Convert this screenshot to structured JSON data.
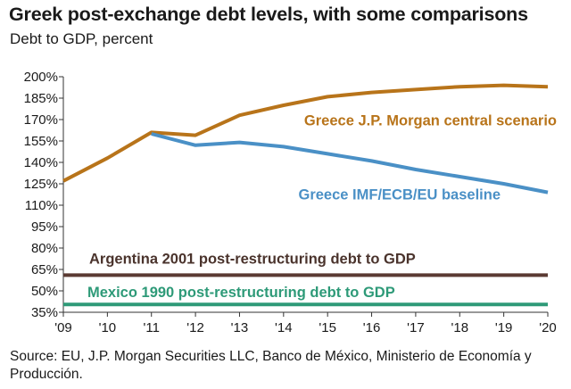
{
  "title": "Greek post-exchange debt levels, with some comparisons",
  "subtitle": "Debt to GDP, percent",
  "source": "Source: EU, J.P. Morgan Securities LLC, Banco de México, Ministerio de Economía y Producción.",
  "chart_data": {
    "type": "line",
    "title": "Greek post-exchange debt levels, with some comparisons",
    "ylabel": "Debt to GDP, percent",
    "xlabel": "",
    "x": [
      2009,
      2010,
      2011,
      2012,
      2013,
      2014,
      2015,
      2016,
      2017,
      2018,
      2019,
      2020
    ],
    "x_tick_labels": [
      "'09",
      "'10",
      "'11",
      "'12",
      "'13",
      "'14",
      "'15",
      "'16",
      "'17",
      "'18",
      "'19",
      "'20"
    ],
    "ylim": [
      35,
      200
    ],
    "y_ticks": [
      35,
      50,
      65,
      80,
      95,
      110,
      125,
      140,
      155,
      170,
      185,
      200
    ],
    "y_tick_labels": [
      "35%",
      "50%",
      "65%",
      "80%",
      "95%",
      "110%",
      "125%",
      "140%",
      "155%",
      "170%",
      "185%",
      "200%"
    ],
    "grid": false,
    "series": [
      {
        "name": "Greece J.P. Morgan central scenario",
        "color": "#b8741a",
        "points": [
          [
            2009,
            127
          ],
          [
            2010,
            143
          ],
          [
            2011,
            161
          ],
          [
            2012,
            159
          ],
          [
            2013,
            173
          ],
          [
            2014,
            180
          ],
          [
            2015,
            186
          ],
          [
            2016,
            189
          ],
          [
            2017,
            191
          ],
          [
            2018,
            193
          ],
          [
            2019,
            194
          ],
          [
            2020,
            193
          ]
        ]
      },
      {
        "name": "Greece IMF/ECB/EU baseline",
        "color": "#4a90c6",
        "points": [
          [
            2011,
            160
          ],
          [
            2012,
            152
          ],
          [
            2013,
            154
          ],
          [
            2014,
            151
          ],
          [
            2015,
            146
          ],
          [
            2016,
            141
          ],
          [
            2017,
            135
          ],
          [
            2018,
            130
          ],
          [
            2019,
            125
          ],
          [
            2020,
            119
          ]
        ]
      },
      {
        "name": "Argentina 2001 post-restructuring debt to GDP",
        "color": "#5a3a33",
        "points": [
          [
            2009,
            61
          ],
          [
            2020,
            61
          ]
        ]
      },
      {
        "name": "Mexico 1990 post-restructuring debt to GDP",
        "color": "#2e9a78",
        "points": [
          [
            2009,
            40.5
          ],
          [
            2020,
            40.5
          ]
        ]
      }
    ]
  }
}
